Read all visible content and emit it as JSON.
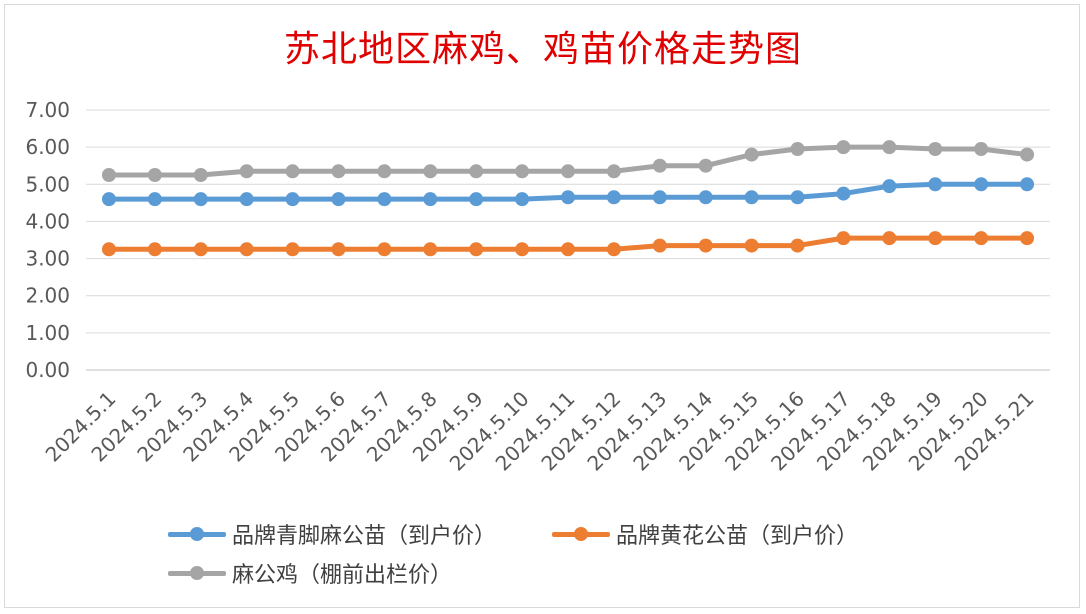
{
  "chart_data": {
    "type": "line",
    "title": "苏北地区麻鸡、鸡苗价格走势图",
    "xlabel": "",
    "ylabel": "",
    "ylim": [
      0,
      7
    ],
    "yticks": [
      "0.00",
      "1.00",
      "2.00",
      "3.00",
      "4.00",
      "5.00",
      "6.00",
      "7.00"
    ],
    "grid": true,
    "legend_position": "bottom",
    "categories": [
      "2024.5.1",
      "2024.5.2",
      "2024.5.3",
      "2024.5.4",
      "2024.5.5",
      "2024.5.6",
      "2024.5.7",
      "2024.5.8",
      "2024.5.9",
      "2024.5.10",
      "2024.5.11",
      "2024.5.12",
      "2024.5.13",
      "2024.5.14",
      "2024.5.15",
      "2024.5.16",
      "2024.5.17",
      "2024.5.18",
      "2024.5.19",
      "2024.5.20",
      "2024.5.21"
    ],
    "series": [
      {
        "name": "品牌青脚麻公苗（到户价）",
        "color": "#5b9bd5",
        "values": [
          4.6,
          4.6,
          4.6,
          4.6,
          4.6,
          4.6,
          4.6,
          4.6,
          4.6,
          4.6,
          4.65,
          4.65,
          4.65,
          4.65,
          4.65,
          4.65,
          4.75,
          4.95,
          5.0,
          5.0,
          5.0
        ]
      },
      {
        "name": "品牌黄花公苗（到户价）",
        "color": "#ed7d31",
        "values": [
          3.25,
          3.25,
          3.25,
          3.25,
          3.25,
          3.25,
          3.25,
          3.25,
          3.25,
          3.25,
          3.25,
          3.25,
          3.35,
          3.35,
          3.35,
          3.35,
          3.55,
          3.55,
          3.55,
          3.55,
          3.55
        ]
      },
      {
        "name": "麻公鸡（棚前出栏价）",
        "color": "#a5a5a5",
        "values": [
          5.25,
          5.25,
          5.25,
          5.35,
          5.35,
          5.35,
          5.35,
          5.35,
          5.35,
          5.35,
          5.35,
          5.35,
          5.5,
          5.5,
          5.8,
          5.95,
          6.0,
          6.0,
          5.95,
          5.95,
          5.8
        ]
      }
    ]
  }
}
